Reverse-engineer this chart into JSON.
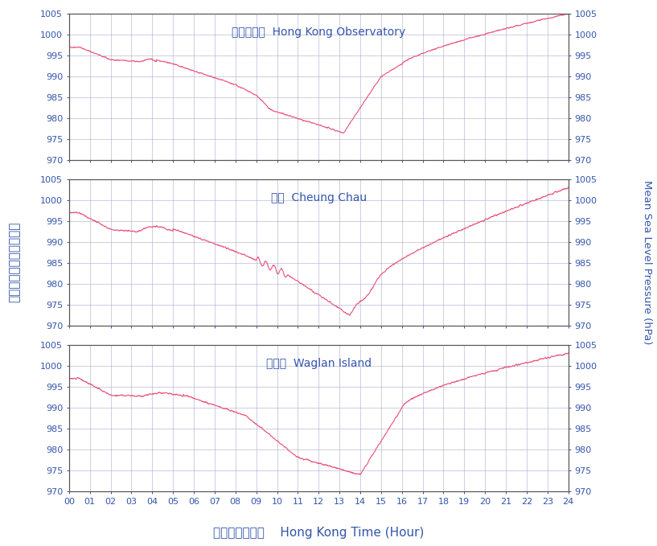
{
  "titles": [
    "香港天文台  Hong Kong Observatory",
    "長洲  Cheung Chau",
    "橫瀾島  Waglan Island"
  ],
  "xlabel": "香港時間（時）    Hong Kong Time (Hour)",
  "ylabel_left": "海平面氣壓（百帕斯卡）",
  "ylabel_right": "Mean Sea Level Pressure (hPa)",
  "ylim": [
    970,
    1005
  ],
  "yticks": [
    970,
    975,
    980,
    985,
    990,
    995,
    1000,
    1005
  ],
  "xticks": [
    0,
    1,
    2,
    3,
    4,
    5,
    6,
    7,
    8,
    9,
    10,
    11,
    12,
    13,
    14,
    15,
    16,
    17,
    18,
    19,
    20,
    21,
    22,
    23,
    24
  ],
  "xlim": [
    0,
    24
  ],
  "line_color": "#E8537A",
  "grid_color": "#AAAACC",
  "title_color": "#3355AA",
  "tick_color": "#3355AA",
  "background_color": "#FFFFFF"
}
